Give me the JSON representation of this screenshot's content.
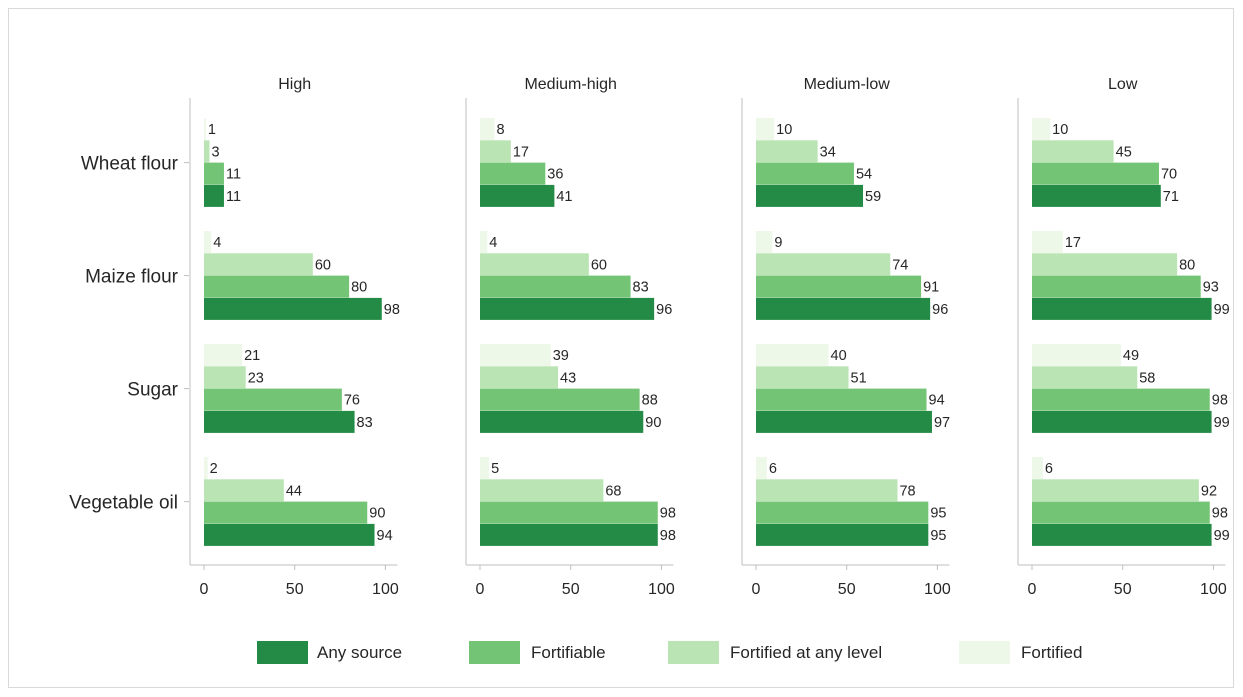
{
  "chart_data": {
    "type": "bar",
    "orientation": "horizontal",
    "panels": [
      {
        "title": "High",
        "series_values": {
          "Any source": [
            11,
            98,
            83,
            94
          ],
          "Fortifiable": [
            11,
            80,
            76,
            90
          ],
          "Fortified at any level": [
            3,
            60,
            23,
            44
          ],
          "Fortified": [
            1,
            4,
            21,
            2
          ]
        }
      },
      {
        "title": "Medium-high",
        "series_values": {
          "Any source": [
            41,
            96,
            90,
            98
          ],
          "Fortifiable": [
            36,
            83,
            88,
            98
          ],
          "Fortified at any level": [
            17,
            60,
            43,
            68
          ],
          "Fortified": [
            8,
            4,
            39,
            5
          ]
        }
      },
      {
        "title": "Medium-low",
        "series_values": {
          "Any source": [
            59,
            96,
            97,
            95
          ],
          "Fortifiable": [
            54,
            91,
            94,
            95
          ],
          "Fortified at any level": [
            34,
            74,
            51,
            78
          ],
          "Fortified": [
            10,
            9,
            40,
            6
          ]
        }
      },
      {
        "title": "Low",
        "series_values": {
          "Any source": [
            71,
            99,
            99,
            99
          ],
          "Fortifiable": [
            70,
            93,
            98,
            98
          ],
          "Fortified at any level": [
            45,
            80,
            58,
            92
          ],
          "Fortified": [
            10,
            17,
            49,
            6
          ]
        }
      }
    ],
    "categories": [
      "Wheat flour",
      "Maize flour",
      "Sugar",
      "Vegetable oil"
    ],
    "series": [
      {
        "name": "Any source",
        "color": "#238b45"
      },
      {
        "name": "Fortifiable",
        "color": "#74c476"
      },
      {
        "name": "Fortified at any level",
        "color": "#bae4b3"
      },
      {
        "name": "Fortified",
        "color": "#edf8e9"
      }
    ],
    "xlim": [
      0,
      100
    ],
    "xticks": [
      0,
      50,
      100
    ],
    "grid": false,
    "legend_position": "bottom"
  }
}
